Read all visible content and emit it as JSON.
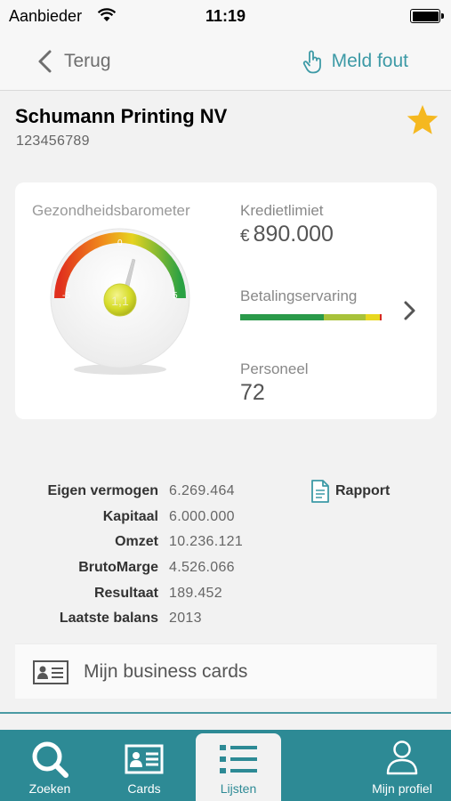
{
  "status_bar": {
    "carrier": "Aanbieder",
    "time": "11:19"
  },
  "nav": {
    "back_label": "Terug",
    "report_error_label": "Meld fout"
  },
  "company": {
    "name": "Schumann Printing NV",
    "id": "123456789"
  },
  "health": {
    "title": "Gezondheidsbarometer",
    "scale_min": "-5",
    "scale_mid": "0",
    "scale_max": "5",
    "score": "1,1",
    "score_value": 1.1
  },
  "credit": {
    "label": "Kredietlimiet",
    "currency": "€",
    "value": "890.000"
  },
  "payment": {
    "label": "Betalingservaring",
    "bar_segments": [
      {
        "color": "#2a9a4a",
        "fraction": 0.6
      },
      {
        "color": "#a8c23a",
        "fraction": 0.3
      },
      {
        "color": "#e8d81f",
        "fraction": 0.1
      },
      {
        "color": "#d62a1f",
        "fraction": 0.015
      }
    ]
  },
  "staff": {
    "label": "Personeel",
    "value": "72"
  },
  "financials": [
    {
      "label": "Eigen vermogen",
      "value": "6.269.464"
    },
    {
      "label": "Kapitaal",
      "value": "6.000.000"
    },
    {
      "label": "Omzet",
      "value": "10.236.121"
    },
    {
      "label": "BrutoMarge",
      "value": "4.526.066"
    },
    {
      "label": "Resultaat",
      "value": "189.452"
    },
    {
      "label": "Laatste balans",
      "value": "2013"
    }
  ],
  "rapport_label": "Rapport",
  "business_cards_label": "Mijn business cards",
  "tabs": [
    {
      "label": "Zoeken",
      "icon": "search-icon"
    },
    {
      "label": "Cards",
      "icon": "business-card-icon"
    },
    {
      "label": "Lijsten",
      "icon": "list-icon",
      "active": true
    },
    {
      "label": "Mijn profiel",
      "icon": "person-icon"
    }
  ],
  "colors": {
    "accent": "#2d8a95",
    "star": "#f5b820"
  }
}
